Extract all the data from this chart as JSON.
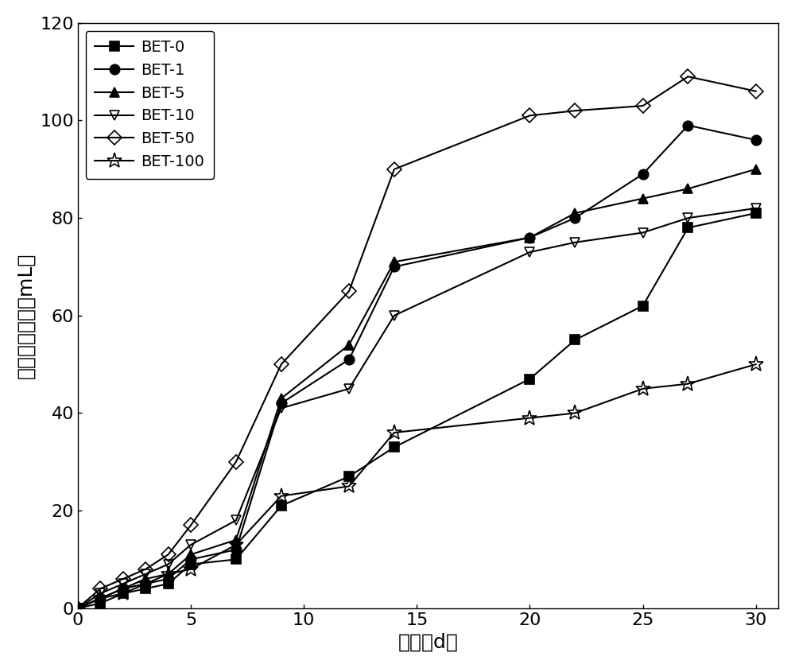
{
  "series": {
    "BET-0": {
      "x": [
        0,
        1,
        2,
        3,
        4,
        5,
        7,
        9,
        12,
        14,
        20,
        22,
        25,
        27,
        30
      ],
      "y": [
        0,
        1,
        3,
        4,
        5,
        9,
        10,
        21,
        27,
        33,
        47,
        55,
        62,
        78,
        81
      ],
      "marker": "s",
      "fillstyle": "full",
      "color": "black"
    },
    "BET-1": {
      "x": [
        0,
        1,
        2,
        3,
        4,
        5,
        7,
        9,
        12,
        14,
        20,
        22,
        25,
        27,
        30
      ],
      "y": [
        0,
        2,
        4,
        5,
        6,
        10,
        12,
        42,
        51,
        70,
        76,
        80,
        89,
        99,
        96
      ],
      "marker": "o",
      "fillstyle": "full",
      "color": "black"
    },
    "BET-5": {
      "x": [
        0,
        1,
        2,
        3,
        4,
        5,
        7,
        9,
        12,
        14,
        20,
        22,
        25,
        27,
        30
      ],
      "y": [
        0,
        2,
        4,
        6,
        7,
        11,
        14,
        43,
        54,
        71,
        76,
        81,
        84,
        86,
        90
      ],
      "marker": "^",
      "fillstyle": "full",
      "color": "black"
    },
    "BET-10": {
      "x": [
        0,
        1,
        2,
        3,
        4,
        5,
        7,
        9,
        12,
        14,
        20,
        22,
        25,
        27,
        30
      ],
      "y": [
        0,
        3,
        5,
        7,
        9,
        13,
        18,
        41,
        45,
        60,
        73,
        75,
        77,
        80,
        82
      ],
      "marker": "v",
      "fillstyle": "none",
      "color": "black"
    },
    "BET-50": {
      "x": [
        0,
        1,
        2,
        3,
        4,
        5,
        7,
        9,
        12,
        14,
        20,
        22,
        25,
        27,
        30
      ],
      "y": [
        0,
        4,
        6,
        8,
        11,
        17,
        30,
        50,
        65,
        90,
        101,
        102,
        103,
        109,
        106
      ],
      "marker": "D",
      "fillstyle": "none",
      "color": "black"
    },
    "BET-100": {
      "x": [
        0,
        1,
        2,
        3,
        4,
        5,
        7,
        9,
        12,
        14,
        20,
        22,
        25,
        27,
        30
      ],
      "y": [
        0,
        2,
        3,
        5,
        7,
        8,
        13,
        23,
        25,
        36,
        39,
        40,
        45,
        46,
        50
      ],
      "marker": "*",
      "fillstyle": "none",
      "color": "black"
    }
  },
  "xlabel": "时间（d）",
  "ylabel": "甲烷累积产量（mL）",
  "xlim": [
    0,
    31
  ],
  "ylim": [
    0,
    120
  ],
  "xticks": [
    0,
    5,
    10,
    15,
    20,
    25,
    30
  ],
  "yticks": [
    0,
    20,
    40,
    60,
    80,
    100,
    120
  ],
  "legend_order": [
    "BET-0",
    "BET-1",
    "BET-5",
    "BET-10",
    "BET-50",
    "BET-100"
  ],
  "label_fontsize": 18,
  "tick_fontsize": 16,
  "legend_fontsize": 14,
  "linewidth": 1.5,
  "markersize": 9
}
